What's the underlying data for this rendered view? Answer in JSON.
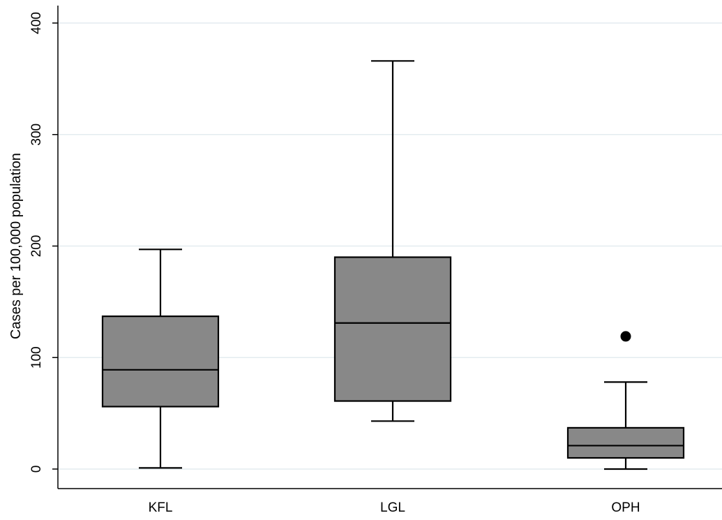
{
  "chart_data": {
    "type": "box",
    "title": "",
    "xlabel": "",
    "ylabel": "Cases per 100,000 population",
    "ylim": [
      0,
      400
    ],
    "yticks": [
      0,
      100,
      200,
      300,
      400
    ],
    "grid": true,
    "legend": "none",
    "categories": [
      "KFL",
      "LGL",
      "OPH"
    ],
    "boxes": [
      {
        "category": "KFL",
        "whisker_low": 1,
        "q1": 56,
        "median": 89,
        "q3": 137,
        "whisker_high": 197,
        "outliers": []
      },
      {
        "category": "LGL",
        "whisker_low": 43,
        "q1": 61,
        "median": 131,
        "q3": 190,
        "whisker_high": 366,
        "outliers": []
      },
      {
        "category": "OPH",
        "whisker_low": 0,
        "q1": 10,
        "median": 21,
        "q3": 37,
        "whisker_high": 78,
        "outliers": [
          119
        ]
      }
    ],
    "colors": {
      "box_fill": "#888888",
      "box_stroke": "#000000",
      "grid": "#e3ecef",
      "axis": "#000000",
      "outlier": "#000000"
    }
  }
}
